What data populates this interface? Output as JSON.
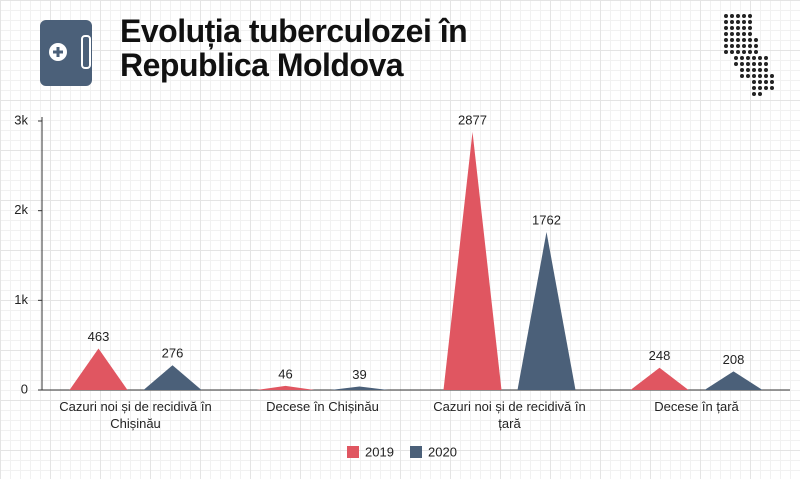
{
  "chart_data": {
    "type": "bar",
    "title": "Evoluția tuberculozei în Republica Moldova",
    "categories": [
      "Cazuri noi și de recidivă în Chișinău",
      "Decese în Chișinău",
      "Cazuri noi și de recidivă în țară",
      "Decese în țară"
    ],
    "series": [
      {
        "name": "2019",
        "color": "#e05661",
        "values": [
          463,
          46,
          2877,
          248
        ]
      },
      {
        "name": "2020",
        "color": "#4b6079",
        "values": [
          276,
          39,
          1762,
          208
        ]
      }
    ],
    "ylim": [
      0,
      3000
    ],
    "yticks": [
      0,
      {
        "value": 1000,
        "label": "1k"
      },
      {
        "value": 2000,
        "label": "2k"
      },
      {
        "value": 3000,
        "label": "3k"
      }
    ],
    "legend": "bottom"
  }
}
